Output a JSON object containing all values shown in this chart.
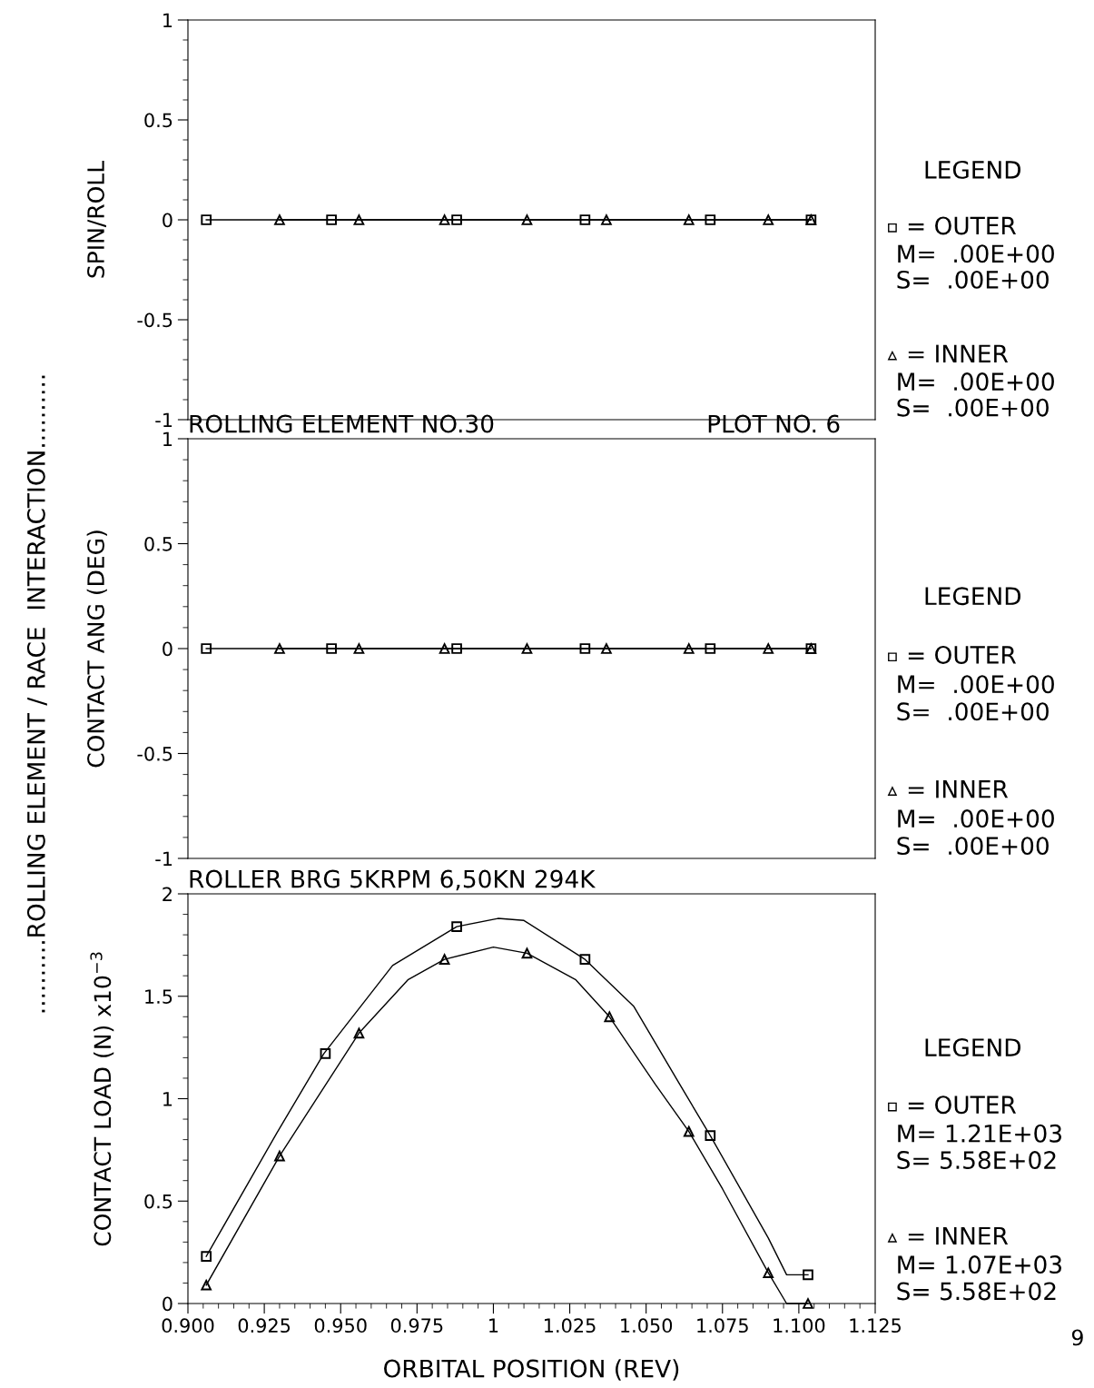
{
  "chart_data": [
    {
      "type": "line",
      "ylabel": "SPIN/ROLL",
      "legend_title": "LEGEND",
      "legend": "right",
      "tick_labels": "y",
      "xlim": [
        0.9,
        1.125
      ],
      "ylim": [
        -1,
        1
      ],
      "yticks": [
        -1,
        {
          "value": -0.9,
          "label": null
        },
        {
          "value": -0.8,
          "label": null
        },
        {
          "value": -0.7,
          "label": null
        },
        {
          "value": -0.6,
          "label": null
        },
        -0.5,
        {
          "value": -0.4,
          "label": null
        },
        {
          "value": -0.3,
          "label": null
        },
        {
          "value": -0.2,
          "label": null
        },
        {
          "value": -0.1,
          "label": null
        },
        0,
        {
          "value": 0.1,
          "label": null
        },
        {
          "value": 0.2,
          "label": null
        },
        {
          "value": 0.3,
          "label": null
        },
        {
          "value": 0.4,
          "label": null
        },
        0.5,
        {
          "value": 0.6,
          "label": null
        },
        {
          "value": 0.7,
          "label": null
        },
        {
          "value": 0.8,
          "label": null
        },
        {
          "value": 0.9,
          "label": null
        },
        1
      ],
      "series": [
        {
          "name": "= OUTER",
          "color": "#000000",
          "marker": "square",
          "x": [
            0.906,
            0.947,
            0.988,
            1.03,
            1.071,
            1.104
          ],
          "values": [
            0,
            0,
            0,
            0,
            0,
            0
          ]
        },
        {
          "name": "= INNER",
          "color": "#000000",
          "marker": "triangle",
          "x": [
            0.93,
            0.956,
            0.984,
            1.011,
            1.037,
            1.064,
            1.09,
            1.104
          ],
          "values": [
            0,
            0,
            0,
            0,
            0,
            0,
            0,
            0
          ]
        }
      ],
      "annotations": [
        "M=  .00E+00",
        "S=  .00E+00",
        "M=  .00E+00",
        "S=  .00E+00"
      ]
    },
    {
      "type": "line",
      "title": "ROLLING ELEMENT NO.30",
      "subtitle": "PLOT NO. 6",
      "ylabel": "CONTACT ANG (DEG)",
      "legend_title": "LEGEND",
      "legend": "right",
      "tick_labels": "y",
      "xlim": [
        0.9,
        1.125
      ],
      "ylim": [
        -1,
        1
      ],
      "yticks": [
        -1,
        {
          "value": -0.9,
          "label": null
        },
        {
          "value": -0.8,
          "label": null
        },
        {
          "value": -0.7,
          "label": null
        },
        {
          "value": -0.6,
          "label": null
        },
        -0.5,
        {
          "value": -0.4,
          "label": null
        },
        {
          "value": -0.3,
          "label": null
        },
        {
          "value": -0.2,
          "label": null
        },
        {
          "value": -0.1,
          "label": null
        },
        0,
        {
          "value": 0.1,
          "label": null
        },
        {
          "value": 0.2,
          "label": null
        },
        {
          "value": 0.3,
          "label": null
        },
        {
          "value": 0.4,
          "label": null
        },
        0.5,
        {
          "value": 0.6,
          "label": null
        },
        {
          "value": 0.7,
          "label": null
        },
        {
          "value": 0.8,
          "label": null
        },
        {
          "value": 0.9,
          "label": null
        },
        1
      ],
      "series": [
        {
          "name": "= OUTER",
          "color": "#000000",
          "marker": "square",
          "x": [
            0.906,
            0.947,
            0.988,
            1.03,
            1.071,
            1.104
          ],
          "values": [
            0,
            0,
            0,
            0,
            0,
            0
          ]
        },
        {
          "name": "= INNER",
          "color": "#000000",
          "marker": "triangle",
          "x": [
            0.93,
            0.956,
            0.984,
            1.011,
            1.037,
            1.064,
            1.09,
            1.104
          ],
          "values": [
            0,
            0,
            0,
            0,
            0,
            0,
            0,
            0
          ]
        }
      ],
      "annotations": [
        "M=  .00E+00",
        "S=  .00E+00",
        "M=  .00E+00",
        "S=  .00E+00",
        "..........ROLLING ELEMENT / RACE  INTERACTION.........."
      ]
    },
    {
      "type": "line",
      "title": "ROLLER BRG 5KRPM 6,50KN 294K",
      "xlabel": "ORBITAL POSITION (REV)",
      "ylabel": "CONTACT LOAD (N) x10$^{−3}$",
      "legend_title": "LEGEND",
      "legend": "right",
      "xlim": [
        0.9,
        1.125
      ],
      "ylim": [
        0,
        2
      ],
      "xticks": [
        {
          "value": 0.9,
          "label": "0.900"
        },
        {
          "value": 0.905,
          "label": null
        },
        {
          "value": 0.91,
          "label": null
        },
        {
          "value": 0.915,
          "label": null
        },
        {
          "value": 0.92,
          "label": null
        },
        {
          "value": 0.925,
          "label": "0.925"
        },
        {
          "value": 0.93,
          "label": null
        },
        {
          "value": 0.935,
          "label": null
        },
        {
          "value": 0.94,
          "label": null
        },
        {
          "value": 0.945,
          "label": null
        },
        {
          "value": 0.95,
          "label": "0.950"
        },
        {
          "value": 0.955,
          "label": null
        },
        {
          "value": 0.96,
          "label": null
        },
        {
          "value": 0.965,
          "label": null
        },
        {
          "value": 0.97,
          "label": null
        },
        {
          "value": 0.975,
          "label": "0.975"
        },
        {
          "value": 0.98,
          "label": null
        },
        {
          "value": 0.985,
          "label": null
        },
        {
          "value": 0.99,
          "label": null
        },
        {
          "value": 0.995,
          "label": null
        },
        1,
        {
          "value": 1.005,
          "label": null
        },
        {
          "value": 1.01,
          "label": null
        },
        {
          "value": 1.015,
          "label": null
        },
        {
          "value": 1.02,
          "label": null
        },
        {
          "value": 1.025,
          "label": "1.025"
        },
        {
          "value": 1.03,
          "label": null
        },
        {
          "value": 1.035,
          "label": null
        },
        {
          "value": 1.04,
          "label": null
        },
        {
          "value": 1.045,
          "label": null
        },
        {
          "value": 1.05,
          "label": "1.050"
        },
        {
          "value": 1.055,
          "label": null
        },
        {
          "value": 1.06,
          "label": null
        },
        {
          "value": 1.065,
          "label": null
        },
        {
          "value": 1.07,
          "label": null
        },
        {
          "value": 1.075,
          "label": "1.075"
        },
        {
          "value": 1.08,
          "label": null
        },
        {
          "value": 1.085,
          "label": null
        },
        {
          "value": 1.09,
          "label": null
        },
        {
          "value": 1.095,
          "label": null
        },
        {
          "value": 1.1,
          "label": "1.100"
        },
        {
          "value": 1.105,
          "label": null
        },
        {
          "value": 1.11,
          "label": null
        },
        {
          "value": 1.115,
          "label": null
        },
        {
          "value": 1.12,
          "label": null
        },
        1.125
      ],
      "yticks": [
        0,
        {
          "value": 0.1,
          "label": null
        },
        {
          "value": 0.2,
          "label": null
        },
        {
          "value": 0.3,
          "label": null
        },
        {
          "value": 0.4,
          "label": null
        },
        0.5,
        {
          "value": 0.6,
          "label": null
        },
        {
          "value": 0.7,
          "label": null
        },
        {
          "value": 0.8,
          "label": null
        },
        {
          "value": 0.9,
          "label": null
        },
        1,
        {
          "value": 1.1,
          "label": null
        },
        {
          "value": 1.2,
          "label": null
        },
        {
          "value": 1.3,
          "label": null
        },
        {
          "value": 1.4,
          "label": null
        },
        1.5,
        {
          "value": 1.6,
          "label": null
        },
        {
          "value": 1.7,
          "label": null
        },
        {
          "value": 1.8,
          "label": null
        },
        {
          "value": 1.9,
          "label": null
        },
        2
      ],
      "series": [
        {
          "name": "= OUTER",
          "type": "scatter",
          "color": "#000000",
          "marker": "square",
          "x": [
            0.906,
            0.945,
            0.988,
            1.03,
            1.071,
            1.103
          ],
          "values": [
            0.23,
            1.22,
            1.84,
            1.68,
            0.82,
            0.14
          ]
        },
        {
          "name": "= INNER",
          "type": "scatter",
          "color": "#000000",
          "marker": "triangle",
          "x": [
            0.906,
            0.93,
            0.956,
            0.984,
            1.011,
            1.038,
            1.064,
            1.09,
            1.103
          ],
          "values": [
            0.09,
            0.72,
            1.32,
            1.68,
            1.71,
            1.4,
            0.84,
            0.15,
            0
          ]
        },
        {
          "type": "line",
          "color": "#000000",
          "marker": "none",
          "x": [
            0.906,
            0.929,
            0.9445,
            0.967,
            0.988,
            1.0015,
            1.01,
            1.03,
            1.046,
            1.061,
            1.071,
            1.09,
            1.096,
            1.103
          ],
          "values": [
            0.23,
            0.83,
            1.22,
            1.65,
            1.84,
            1.88,
            1.87,
            1.68,
            1.45,
            1.07,
            0.82,
            0.32,
            0.14,
            0.14
          ]
        },
        {
          "type": "line",
          "color": "#000000",
          "marker": "none",
          "x": [
            0.906,
            0.93,
            0.956,
            0.972,
            0.984,
            1.0,
            1.011,
            1.027,
            1.038,
            1.053,
            1.064,
            1.075,
            1.09,
            1.096,
            1.103
          ],
          "values": [
            0.09,
            0.72,
            1.32,
            1.58,
            1.68,
            1.74,
            1.71,
            1.58,
            1.4,
            1.07,
            0.84,
            0.56,
            0.15,
            0,
            0
          ]
        }
      ],
      "annotations": [
        "M= 1.21E+03",
        "S= 5.58E+02",
        "M= 1.07E+03",
        "S= 5.58E+02",
        "9"
      ]
    }
  ]
}
